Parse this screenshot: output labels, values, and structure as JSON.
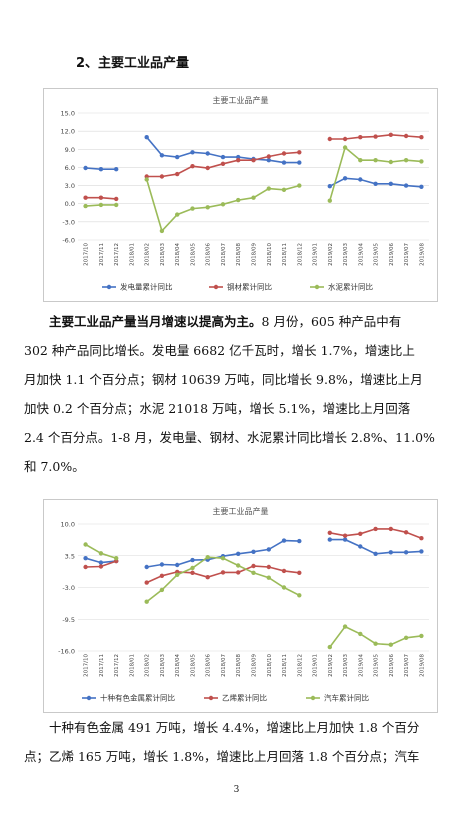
{
  "section_heading": "2、主要工业品产量",
  "chart_data": [
    {
      "type": "line",
      "title": "主要工业品产量",
      "categories": [
        "2017/10",
        "2017/11",
        "2017/12",
        "2018/01",
        "2018/02",
        "2018/03",
        "2018/04",
        "2018/05",
        "2018/06",
        "2018/07",
        "2018/08",
        "2018/09",
        "2018/10",
        "2018/11",
        "2018/12",
        "2019/01",
        "2019/02",
        "2019/03",
        "2019/04",
        "2019/05",
        "2019/06",
        "2019/07",
        "2019/08"
      ],
      "yticks": [
        "15.0",
        "12.0",
        "9.0",
        "6.0",
        "3.0",
        "0.0",
        "-3.0",
        "-6.0"
      ],
      "ylim": [
        -6,
        15
      ],
      "legend_position": "bottom",
      "series": [
        {
          "name": "发电量累计同比",
          "color": "#4472c4",
          "values": [
            5.9,
            5.7,
            5.7,
            null,
            11.0,
            8.0,
            7.7,
            8.5,
            8.3,
            7.7,
            7.7,
            7.4,
            7.2,
            6.8,
            6.8,
            null,
            2.9,
            4.2,
            4.0,
            3.3,
            3.3,
            3.0,
            2.8
          ]
        },
        {
          "name": "钢材累计同比",
          "color": "#c0504d",
          "values": [
            1.0,
            1.0,
            0.8,
            null,
            4.5,
            4.5,
            4.9,
            6.2,
            5.9,
            6.6,
            7.2,
            7.2,
            7.8,
            8.3,
            8.5,
            null,
            10.7,
            10.7,
            11.0,
            11.1,
            11.4,
            11.2,
            11.0
          ]
        },
        {
          "name": "水泥累计同比",
          "color": "#9bbb59",
          "values": [
            -0.4,
            -0.2,
            -0.2,
            null,
            4.0,
            -4.5,
            -1.8,
            -0.8,
            -0.6,
            -0.1,
            0.6,
            1.0,
            2.5,
            2.3,
            3.0,
            null,
            0.5,
            9.3,
            7.2,
            7.2,
            6.9,
            7.2,
            7.0
          ]
        }
      ]
    },
    {
      "type": "line",
      "title": "主要工业品产量",
      "categories": [
        "2017/10",
        "2017/11",
        "2017/12",
        "2018/01",
        "2018/02",
        "2018/03",
        "2018/04",
        "2018/05",
        "2018/06",
        "2018/07",
        "2018/08",
        "2018/09",
        "2018/10",
        "2018/11",
        "2018/12",
        "2019/01",
        "2019/02",
        "2019/03",
        "2019/04",
        "2019/05",
        "2019/06",
        "2019/07",
        "2019/08"
      ],
      "yticks": [
        "10.0",
        "3.5",
        "-3.0",
        "-9.5",
        "-16.0"
      ],
      "ylim": [
        -16,
        10
      ],
      "legend_position": "bottom",
      "series": [
        {
          "name": "十种有色金属累计同比",
          "color": "#4472c4",
          "values": [
            3.0,
            2.1,
            2.4,
            null,
            1.2,
            1.7,
            1.6,
            2.6,
            2.7,
            3.4,
            3.9,
            4.3,
            4.8,
            6.6,
            6.5,
            null,
            6.8,
            6.8,
            5.4,
            3.9,
            4.2,
            4.2,
            4.4
          ]
        },
        {
          "name": "乙烯累计同比",
          "color": "#c0504d",
          "values": [
            1.2,
            1.3,
            2.4,
            null,
            -2.0,
            -0.6,
            0.2,
            0.0,
            -0.9,
            0.1,
            0.1,
            1.4,
            1.2,
            0.4,
            0.0,
            null,
            8.2,
            7.6,
            8.0,
            9.0,
            9.0,
            8.3,
            7.1
          ]
        },
        {
          "name": "汽车累计同比",
          "color": "#9bbb59",
          "values": [
            5.8,
            4.0,
            3.0,
            null,
            -5.9,
            -3.5,
            -0.4,
            1.0,
            3.2,
            3.0,
            1.5,
            0.0,
            -1.0,
            -3.0,
            -4.6,
            null,
            -15.2,
            -11.0,
            -12.5,
            -14.5,
            -14.7,
            -13.3,
            -12.9
          ]
        }
      ]
    }
  ],
  "paragraph1": {
    "lead": "主要工业品产量当月增速以提高为主。",
    "line1_rest": "8 月份，605 种产品中有",
    "line2": "302 种产品同比增长。发电量 6682 亿千瓦时，增长 1.7%，增速比上",
    "line3": "月加快 1.1 个百分点；钢材 10639 万吨，同比增长 9.8%，增速比上月",
    "line4": "加快 0.2 个百分点；水泥 21018 万吨，增长 5.1%，增速比上月回落",
    "line5": "2.4 个百分点。1-8 月，发电量、钢材、水泥累计同比增长 2.8%、11.0%",
    "line6": "和 7.0%。"
  },
  "paragraph2": {
    "line1": "十种有色金属 491 万吨，增长 4.4%，增速比上月加快 1.8 个百分",
    "line2": "点；乙烯 165 万吨，增长 1.8%，增速比上月回落 1.8 个百分点；汽车"
  },
  "page_number": "3"
}
